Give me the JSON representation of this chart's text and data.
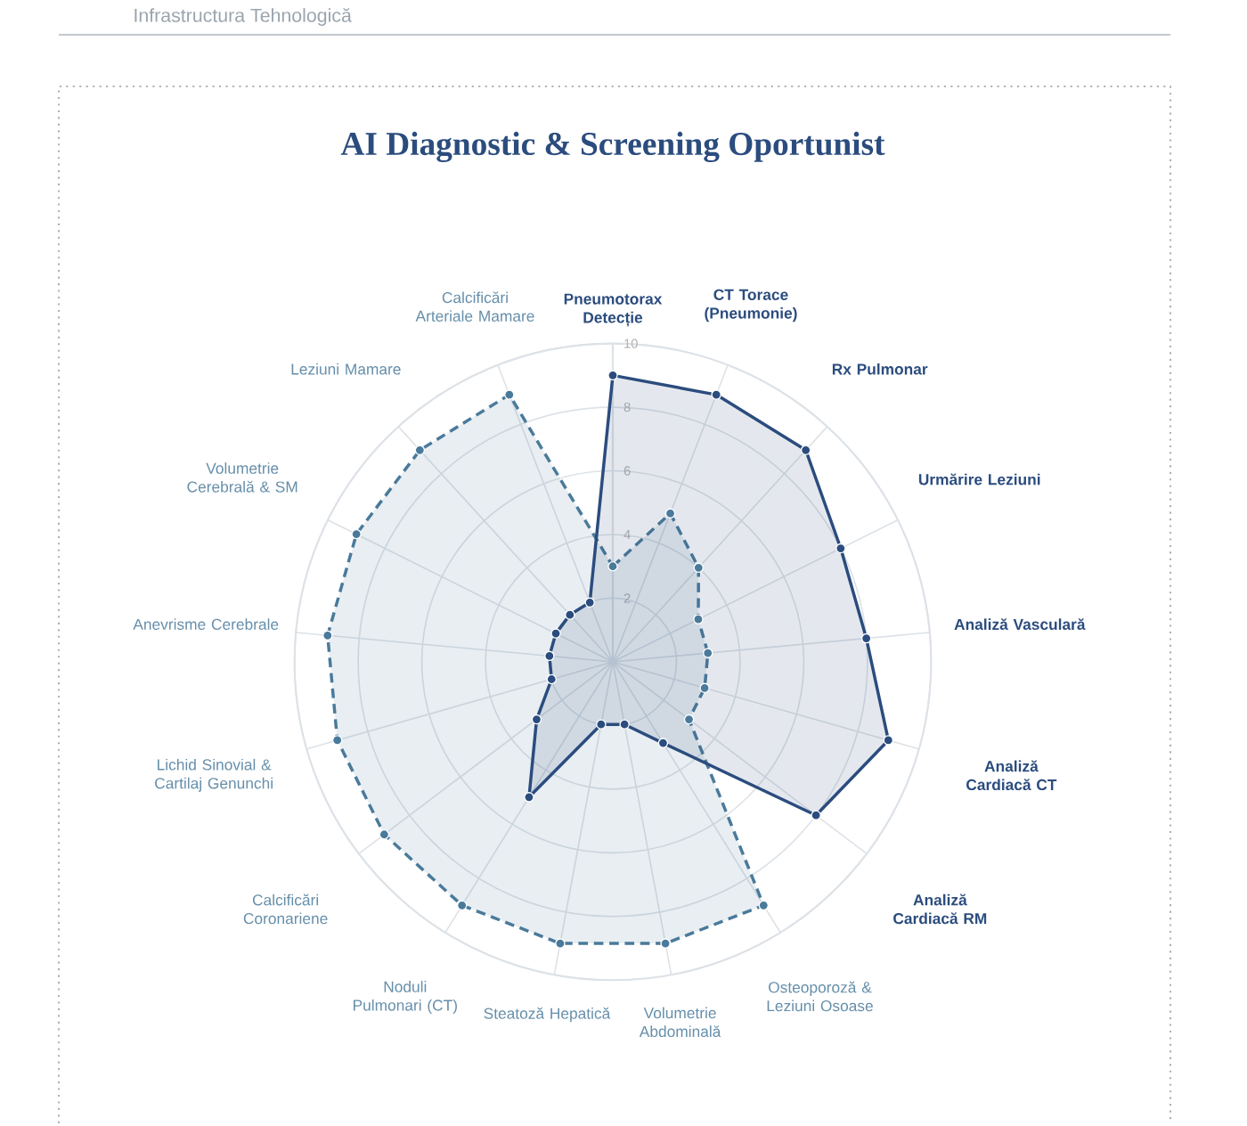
{
  "chart_data": {
    "type": "radar",
    "title": "AI Diagnostic & Screening Oportunist",
    "subtitle": "Infrastructura Tehnologică",
    "categories": [
      "Pneumotorax Detecție",
      "CT Torace (Pneumonie)",
      "Rx Pulmonar",
      "Urmărire Leziuni",
      "Analiză Vasculară",
      "Analiză Cardiacă CT",
      "Analiză Cardiacă RM",
      "Osteoporoză & Leziuni Osoase",
      "Volumetrie Abdominală",
      "Steatoză Hepatică",
      "Noduli Pulmonari (CT)",
      "Calcificări Coronariene",
      "Lichid Sinovial & Cartilaj Genunchi",
      "Anevrisme Cerebrale",
      "Volumetrie Cerebrală & SM",
      "Leziuni Mamare",
      "Calcificări Arteriale Mamare"
    ],
    "series": [
      {
        "color": "#2b4c7e",
        "line_style": "solid",
        "values": [
          9,
          9,
          9,
          8,
          8,
          9,
          8,
          3,
          2,
          2,
          5,
          3,
          2,
          2,
          2,
          2,
          2
        ]
      },
      {
        "color": "#4a7a9b",
        "line_style": "dashed",
        "values": [
          3,
          5,
          4,
          3,
          3,
          3,
          3,
          9,
          9,
          9,
          9,
          9,
          9,
          9,
          9,
          9,
          9
        ]
      }
    ],
    "ylim": [
      0,
      10
    ],
    "yticks": [
      2,
      4,
      6,
      8,
      10
    ],
    "grid": true,
    "marker": "circle"
  }
}
